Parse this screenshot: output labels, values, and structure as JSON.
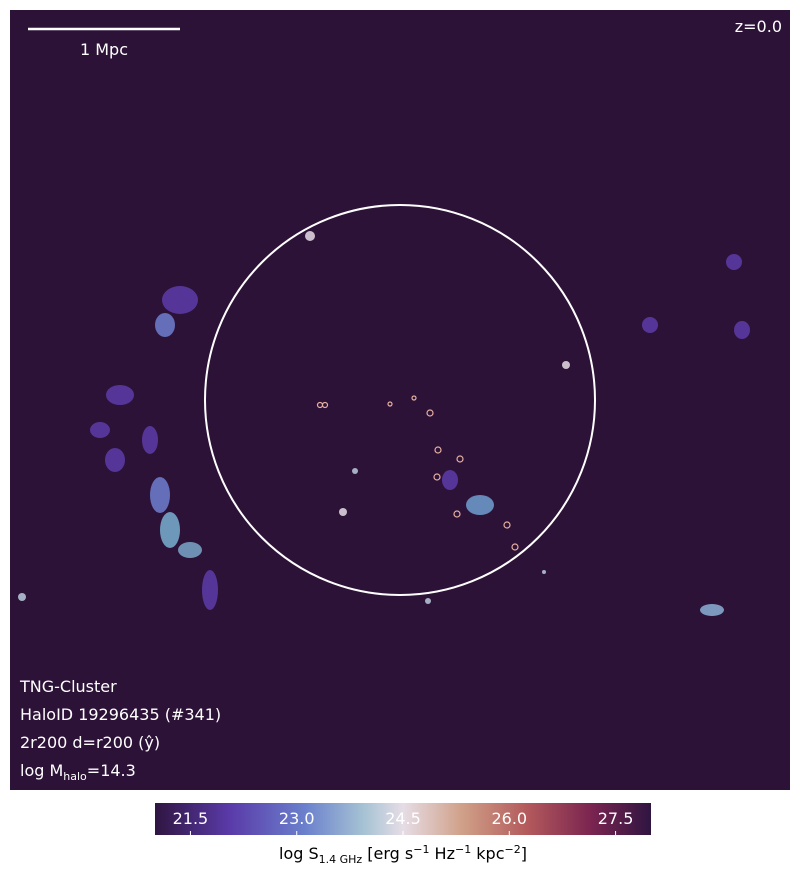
{
  "image": {
    "scale_bar": "1 Mpc",
    "redshift": "z=0.0",
    "info": [
      "TNG-Cluster",
      "HaloID 19296435 (#341)",
      "2r200 d=r200 (ŷ)"
    ],
    "mass_label": [
      "log M",
      "halo",
      "=14.3"
    ]
  },
  "colorbar": {
    "lim": [
      21.0,
      28.0
    ],
    "ticks": [
      21.5,
      {
        "value": 23,
        "label": "23.0"
      },
      24.5,
      {
        "value": 26,
        "label": "26.0"
      },
      27.5
    ],
    "label": [
      "log S",
      "1.4 GHz",
      " [erg s",
      "−1",
      " Hz",
      "−1",
      " kpc",
      "−2",
      "]"
    ]
  }
}
